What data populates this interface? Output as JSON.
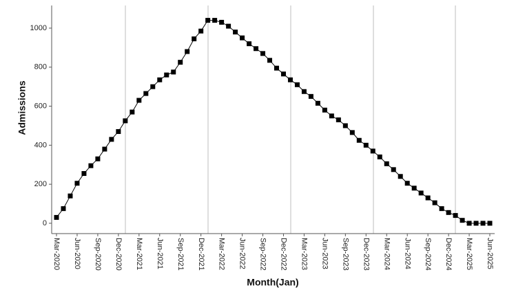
{
  "chart_data": {
    "type": "line",
    "x_label": "Month(Jan)",
    "y_label": "Admissions",
    "categories": [
      "Mar-2020",
      null,
      null,
      "Jun-2020",
      null,
      null,
      "Sep-2020",
      null,
      null,
      "Dec-2020",
      null,
      null,
      "Mar-2021",
      null,
      null,
      "Jun-2021",
      null,
      null,
      "Sep-2021",
      null,
      null,
      "Dec-2021",
      null,
      null,
      "Mar-2022",
      null,
      null,
      "Jun-2022",
      null,
      null,
      "Sep-2022",
      null,
      null,
      "Dec-2022",
      null,
      null,
      "Mar-2023",
      null,
      null,
      "Jun-2023",
      null,
      null,
      "Sep-2023",
      null,
      null,
      "Dec-2023",
      null,
      null,
      "Mar-2024",
      null,
      null,
      "Jun-2024",
      null,
      null,
      "Sep-2024",
      null,
      null,
      "Dec-2024",
      null,
      null,
      "Mar-2025",
      null,
      null,
      "Jun-2025"
    ],
    "values": [
      30,
      75,
      140,
      205,
      255,
      295,
      330,
      380,
      430,
      470,
      525,
      570,
      630,
      665,
      700,
      735,
      760,
      775,
      825,
      880,
      945,
      985,
      1040,
      1040,
      1030,
      1010,
      980,
      950,
      920,
      895,
      870,
      835,
      795,
      765,
      735,
      710,
      675,
      650,
      615,
      580,
      550,
      530,
      500,
      465,
      425,
      400,
      370,
      340,
      305,
      275,
      240,
      205,
      180,
      155,
      130,
      105,
      75,
      55,
      40,
      15,
      0,
      0,
      0,
      0
    ],
    "color": "#000000",
    "ylim": [
      -53,
      1116
    ],
    "yticks": [
      0,
      200,
      400,
      600,
      800,
      1000
    ]
  }
}
